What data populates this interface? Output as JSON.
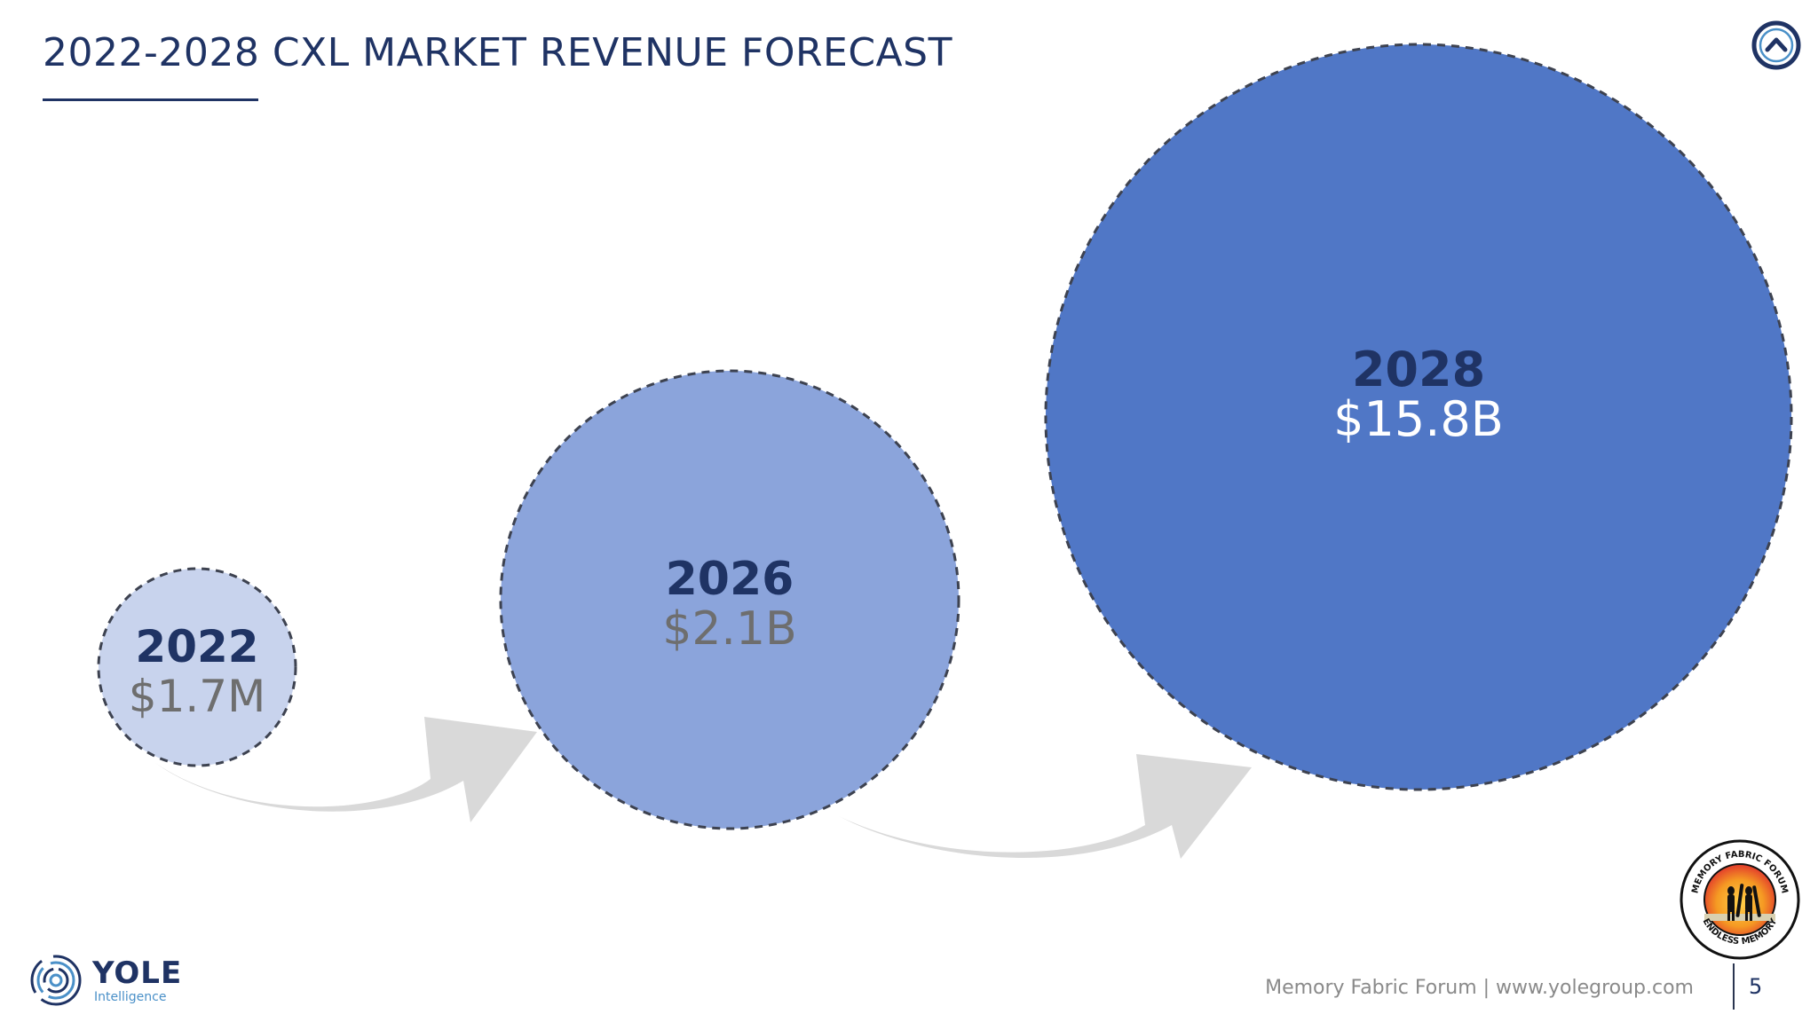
{
  "slide": {
    "title": "2022-2028 CXL MARKET REVENUE FORECAST",
    "footer_text": "Memory Fabric Forum | www.yolegroup.com",
    "page_number": "5"
  },
  "branding": {
    "yole_wordmark": "YOLE",
    "yole_subtitle": "Intelligence",
    "forum_badge_top": "MEMORY FABRIC FORUM",
    "forum_badge_bottom": "ENDLESS MEMORY"
  },
  "icons": {
    "nav": "chevron-up-circle-icon",
    "yole": "yole-spiral-logo-icon",
    "forum": "memory-fabric-forum-badge-icon",
    "arrows": "curved-arrow-icon"
  },
  "colors": {
    "title": "#1f3364",
    "year_label": "#1f3364",
    "bubble_2022": "#c8d3ed",
    "bubble_2026": "#8ba4db",
    "bubble_2028": "#5077c6",
    "value_dark": "#6e6e6e",
    "value_light": "#ffffff",
    "arrow": "#d9d9d9",
    "outline": "#3d4250"
  },
  "chart_data": {
    "type": "bubble",
    "title": "2022-2028 CXL MARKET REVENUE FORECAST",
    "points": [
      {
        "year": "2022",
        "value": 0.0017,
        "label": "$1.7M"
      },
      {
        "year": "2026",
        "value": 2.1,
        "label": "$2.1B"
      },
      {
        "year": "2028",
        "value": 15.8,
        "label": "$15.8B"
      }
    ],
    "unit": "USD billions",
    "scale": "bubble area grows with revenue (not to scale)",
    "arrows_between_bubbles": 2
  }
}
